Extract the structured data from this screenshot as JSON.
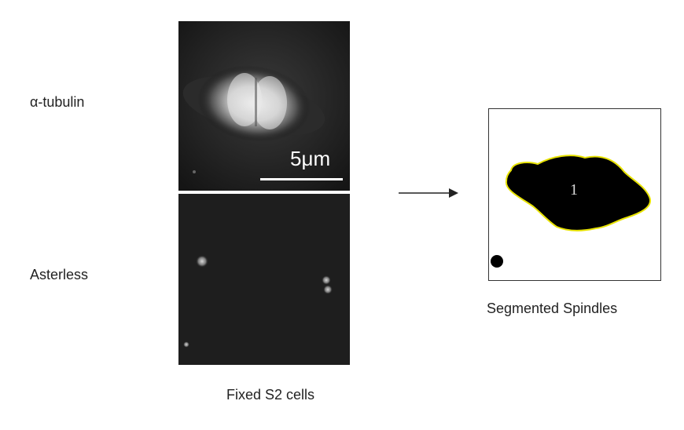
{
  "labels": {
    "row1": "α-tubulin",
    "row2": "Asterless",
    "scale_bar": "5μm",
    "left_caption": "Fixed S2 cells",
    "right_caption": "Segmented Spindles",
    "segment_id": "1"
  }
}
